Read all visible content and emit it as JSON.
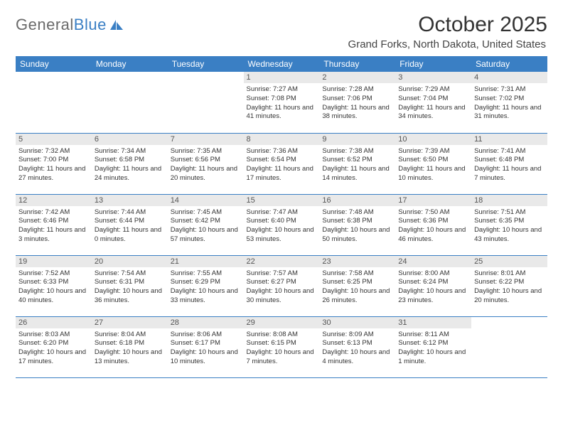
{
  "logo": {
    "text_gray": "General",
    "text_blue": "Blue"
  },
  "title": "October 2025",
  "subtitle": "Grand Forks, North Dakota, United States",
  "day_headers": [
    "Sunday",
    "Monday",
    "Tuesday",
    "Wednesday",
    "Thursday",
    "Friday",
    "Saturday"
  ],
  "header_bg": "#3a7fc4",
  "header_fg": "#ffffff",
  "daynum_bg": "#e9e9e9",
  "border_color": "#3a7fc4",
  "font_family": "Arial",
  "title_fontsize": 30,
  "subtitle_fontsize": 15,
  "header_fontsize": 12,
  "cell_fontsize": 9.5,
  "weeks": [
    [
      {
        "empty": true
      },
      {
        "empty": true
      },
      {
        "empty": true
      },
      {
        "day": "1",
        "sunrise": "7:27 AM",
        "sunset": "7:08 PM",
        "daylight": "11 hours and 41 minutes."
      },
      {
        "day": "2",
        "sunrise": "7:28 AM",
        "sunset": "7:06 PM",
        "daylight": "11 hours and 38 minutes."
      },
      {
        "day": "3",
        "sunrise": "7:29 AM",
        "sunset": "7:04 PM",
        "daylight": "11 hours and 34 minutes."
      },
      {
        "day": "4",
        "sunrise": "7:31 AM",
        "sunset": "7:02 PM",
        "daylight": "11 hours and 31 minutes."
      }
    ],
    [
      {
        "day": "5",
        "sunrise": "7:32 AM",
        "sunset": "7:00 PM",
        "daylight": "11 hours and 27 minutes."
      },
      {
        "day": "6",
        "sunrise": "7:34 AM",
        "sunset": "6:58 PM",
        "daylight": "11 hours and 24 minutes."
      },
      {
        "day": "7",
        "sunrise": "7:35 AM",
        "sunset": "6:56 PM",
        "daylight": "11 hours and 20 minutes."
      },
      {
        "day": "8",
        "sunrise": "7:36 AM",
        "sunset": "6:54 PM",
        "daylight": "11 hours and 17 minutes."
      },
      {
        "day": "9",
        "sunrise": "7:38 AM",
        "sunset": "6:52 PM",
        "daylight": "11 hours and 14 minutes."
      },
      {
        "day": "10",
        "sunrise": "7:39 AM",
        "sunset": "6:50 PM",
        "daylight": "11 hours and 10 minutes."
      },
      {
        "day": "11",
        "sunrise": "7:41 AM",
        "sunset": "6:48 PM",
        "daylight": "11 hours and 7 minutes."
      }
    ],
    [
      {
        "day": "12",
        "sunrise": "7:42 AM",
        "sunset": "6:46 PM",
        "daylight": "11 hours and 3 minutes."
      },
      {
        "day": "13",
        "sunrise": "7:44 AM",
        "sunset": "6:44 PM",
        "daylight": "11 hours and 0 minutes."
      },
      {
        "day": "14",
        "sunrise": "7:45 AM",
        "sunset": "6:42 PM",
        "daylight": "10 hours and 57 minutes."
      },
      {
        "day": "15",
        "sunrise": "7:47 AM",
        "sunset": "6:40 PM",
        "daylight": "10 hours and 53 minutes."
      },
      {
        "day": "16",
        "sunrise": "7:48 AM",
        "sunset": "6:38 PM",
        "daylight": "10 hours and 50 minutes."
      },
      {
        "day": "17",
        "sunrise": "7:50 AM",
        "sunset": "6:36 PM",
        "daylight": "10 hours and 46 minutes."
      },
      {
        "day": "18",
        "sunrise": "7:51 AM",
        "sunset": "6:35 PM",
        "daylight": "10 hours and 43 minutes."
      }
    ],
    [
      {
        "day": "19",
        "sunrise": "7:52 AM",
        "sunset": "6:33 PM",
        "daylight": "10 hours and 40 minutes."
      },
      {
        "day": "20",
        "sunrise": "7:54 AM",
        "sunset": "6:31 PM",
        "daylight": "10 hours and 36 minutes."
      },
      {
        "day": "21",
        "sunrise": "7:55 AM",
        "sunset": "6:29 PM",
        "daylight": "10 hours and 33 minutes."
      },
      {
        "day": "22",
        "sunrise": "7:57 AM",
        "sunset": "6:27 PM",
        "daylight": "10 hours and 30 minutes."
      },
      {
        "day": "23",
        "sunrise": "7:58 AM",
        "sunset": "6:25 PM",
        "daylight": "10 hours and 26 minutes."
      },
      {
        "day": "24",
        "sunrise": "8:00 AM",
        "sunset": "6:24 PM",
        "daylight": "10 hours and 23 minutes."
      },
      {
        "day": "25",
        "sunrise": "8:01 AM",
        "sunset": "6:22 PM",
        "daylight": "10 hours and 20 minutes."
      }
    ],
    [
      {
        "day": "26",
        "sunrise": "8:03 AM",
        "sunset": "6:20 PM",
        "daylight": "10 hours and 17 minutes."
      },
      {
        "day": "27",
        "sunrise": "8:04 AM",
        "sunset": "6:18 PM",
        "daylight": "10 hours and 13 minutes."
      },
      {
        "day": "28",
        "sunrise": "8:06 AM",
        "sunset": "6:17 PM",
        "daylight": "10 hours and 10 minutes."
      },
      {
        "day": "29",
        "sunrise": "8:08 AM",
        "sunset": "6:15 PM",
        "daylight": "10 hours and 7 minutes."
      },
      {
        "day": "30",
        "sunrise": "8:09 AM",
        "sunset": "6:13 PM",
        "daylight": "10 hours and 4 minutes."
      },
      {
        "day": "31",
        "sunrise": "8:11 AM",
        "sunset": "6:12 PM",
        "daylight": "10 hours and 1 minute."
      },
      {
        "empty": true
      }
    ]
  ],
  "labels": {
    "sunrise": "Sunrise:",
    "sunset": "Sunset:",
    "daylight": "Daylight:"
  }
}
